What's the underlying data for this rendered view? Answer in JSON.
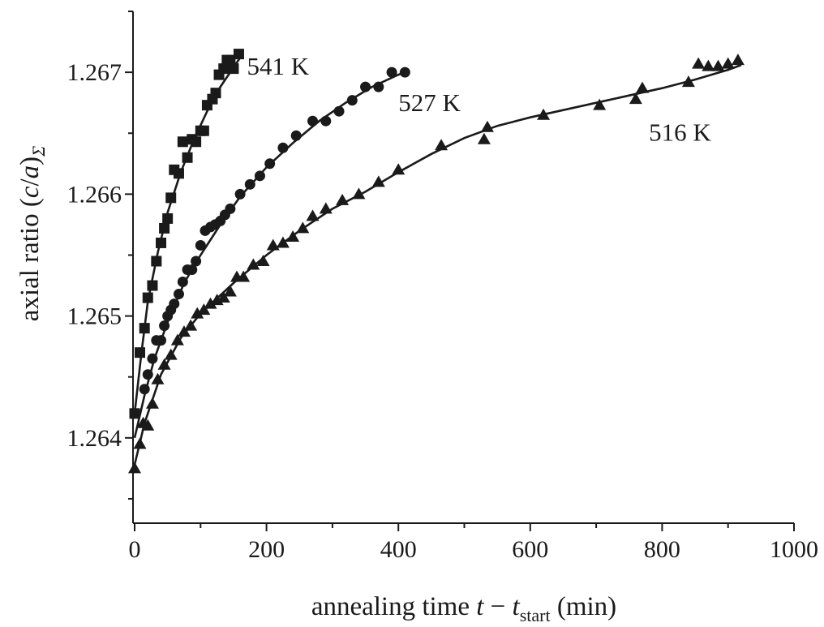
{
  "chart_data": {
    "type": "scatter",
    "xlabel": {
      "main": "annealing time ",
      "t": "t",
      "minus": " − ",
      "t2": "t",
      "sub": "start",
      "unit": " (min)"
    },
    "ylabel": {
      "main": "axial ratio (",
      "c": "c",
      "slash": "/",
      "a": "a",
      "close": ")",
      "sub": "Σ"
    },
    "xlim": [
      0,
      1000
    ],
    "ylim": [
      1.2633,
      1.2675
    ],
    "x_ticks": [
      0,
      200,
      400,
      600,
      800,
      1000
    ],
    "x_tick_labels": [
      "0",
      "200",
      "400",
      "600",
      "800",
      "1000"
    ],
    "y_ticks": [
      1.264,
      1.265,
      1.266,
      1.267
    ],
    "y_tick_labels": [
      "1.264",
      "1.265",
      "1.266",
      "1.267"
    ],
    "grid": false,
    "legend": "none",
    "series": [
      {
        "name": "541 K",
        "marker": "square",
        "points": [
          [
            0,
            1.2642
          ],
          [
            8,
            1.2647
          ],
          [
            15,
            1.2649
          ],
          [
            20,
            1.26515
          ],
          [
            27,
            1.26525
          ],
          [
            33,
            1.26545
          ],
          [
            40,
            1.2656
          ],
          [
            45,
            1.26572
          ],
          [
            50,
            1.2658
          ],
          [
            55,
            1.26597
          ],
          [
            60,
            1.2662
          ],
          [
            67,
            1.26617
          ],
          [
            73,
            1.26643
          ],
          [
            80,
            1.2663
          ],
          [
            87,
            1.26645
          ],
          [
            93,
            1.26643
          ],
          [
            100,
            1.26652
          ],
          [
            105,
            1.26652
          ],
          [
            110,
            1.26673
          ],
          [
            118,
            1.26678
          ],
          [
            123,
            1.26683
          ],
          [
            128,
            1.26698
          ],
          [
            135,
            1.26703
          ],
          [
            140,
            1.2671
          ],
          [
            145,
            1.2671
          ],
          [
            150,
            1.26703
          ],
          [
            158,
            1.26715
          ]
        ],
        "fit": [
          [
            0,
            1.2642
          ],
          [
            10,
            1.26468
          ],
          [
            20,
            1.26512
          ],
          [
            35,
            1.26552
          ],
          [
            50,
            1.26585
          ],
          [
            70,
            1.26618
          ],
          [
            90,
            1.26645
          ],
          [
            110,
            1.26668
          ],
          [
            130,
            1.26688
          ],
          [
            150,
            1.26704
          ],
          [
            160,
            1.26712
          ]
        ]
      },
      {
        "name": "527 K",
        "marker": "circle",
        "points": [
          [
            15,
            1.2644
          ],
          [
            20,
            1.26452
          ],
          [
            27,
            1.26465
          ],
          [
            33,
            1.2648
          ],
          [
            40,
            1.2648
          ],
          [
            45,
            1.26492
          ],
          [
            50,
            1.265
          ],
          [
            55,
            1.26505
          ],
          [
            60,
            1.2651
          ],
          [
            67,
            1.26518
          ],
          [
            73,
            1.26528
          ],
          [
            80,
            1.26538
          ],
          [
            87,
            1.26538
          ],
          [
            93,
            1.26545
          ],
          [
            100,
            1.26558
          ],
          [
            107,
            1.2657
          ],
          [
            115,
            1.26573
          ],
          [
            122,
            1.26575
          ],
          [
            130,
            1.26578
          ],
          [
            137,
            1.26583
          ],
          [
            145,
            1.26588
          ],
          [
            160,
            1.266
          ],
          [
            175,
            1.26608
          ],
          [
            190,
            1.26615
          ],
          [
            205,
            1.26625
          ],
          [
            225,
            1.26638
          ],
          [
            245,
            1.26648
          ],
          [
            270,
            1.2666
          ],
          [
            290,
            1.2666
          ],
          [
            310,
            1.26668
          ],
          [
            330,
            1.26677
          ],
          [
            350,
            1.26688
          ],
          [
            370,
            1.26688
          ],
          [
            390,
            1.267
          ],
          [
            410,
            1.267
          ]
        ],
        "fit": [
          [
            0,
            1.264
          ],
          [
            15,
            1.26435
          ],
          [
            30,
            1.26465
          ],
          [
            50,
            1.26495
          ],
          [
            75,
            1.26527
          ],
          [
            100,
            1.2655
          ],
          [
            130,
            1.26575
          ],
          [
            160,
            1.26598
          ],
          [
            200,
            1.26622
          ],
          [
            240,
            1.26642
          ],
          [
            280,
            1.2666
          ],
          [
            320,
            1.26675
          ],
          [
            360,
            1.26688
          ],
          [
            400,
            1.26698
          ],
          [
            415,
            1.26701
          ]
        ]
      },
      {
        "name": "516 K",
        "marker": "triangle",
        "points": [
          [
            0,
            1.26375
          ],
          [
            8,
            1.26395
          ],
          [
            13,
            1.26412
          ],
          [
            20,
            1.2641
          ],
          [
            27,
            1.26428
          ],
          [
            35,
            1.26448
          ],
          [
            45,
            1.2646
          ],
          [
            55,
            1.26468
          ],
          [
            65,
            1.2648
          ],
          [
            75,
            1.26487
          ],
          [
            85,
            1.26492
          ],
          [
            95,
            1.26502
          ],
          [
            105,
            1.26505
          ],
          [
            115,
            1.2651
          ],
          [
            125,
            1.26513
          ],
          [
            135,
            1.26515
          ],
          [
            145,
            1.2652
          ],
          [
            155,
            1.26532
          ],
          [
            165,
            1.26532
          ],
          [
            180,
            1.26542
          ],
          [
            195,
            1.26545
          ],
          [
            210,
            1.26558
          ],
          [
            225,
            1.2656
          ],
          [
            240,
            1.26565
          ],
          [
            255,
            1.26572
          ],
          [
            270,
            1.26582
          ],
          [
            290,
            1.26588
          ],
          [
            315,
            1.26595
          ],
          [
            340,
            1.266
          ],
          [
            370,
            1.2661
          ],
          [
            400,
            1.2662
          ],
          [
            465,
            1.2664
          ],
          [
            530,
            1.26645
          ],
          [
            535,
            1.26655
          ],
          [
            620,
            1.26665
          ],
          [
            705,
            1.26673
          ],
          [
            760,
            1.26678
          ],
          [
            770,
            1.26687
          ],
          [
            840,
            1.26692
          ],
          [
            855,
            1.26707
          ],
          [
            870,
            1.26705
          ],
          [
            885,
            1.26705
          ],
          [
            900,
            1.26707
          ],
          [
            915,
            1.2671
          ]
        ],
        "fit": [
          [
            0,
            1.26378
          ],
          [
            15,
            1.26412
          ],
          [
            40,
            1.26452
          ],
          [
            70,
            1.26482
          ],
          [
            100,
            1.26502
          ],
          [
            150,
            1.26527
          ],
          [
            200,
            1.2655
          ],
          [
            250,
            1.2657
          ],
          [
            300,
            1.26588
          ],
          [
            350,
            1.26602
          ],
          [
            400,
            1.26618
          ],
          [
            450,
            1.26633
          ],
          [
            500,
            1.26646
          ],
          [
            550,
            1.26656
          ],
          [
            600,
            1.26663
          ],
          [
            650,
            1.26669
          ],
          [
            700,
            1.26675
          ],
          [
            750,
            1.26681
          ],
          [
            800,
            1.26687
          ],
          [
            850,
            1.26694
          ],
          [
            900,
            1.26702
          ],
          [
            920,
            1.26706
          ]
        ],
        "label_anchor": [
          880,
          1.26665
        ]
      }
    ]
  }
}
